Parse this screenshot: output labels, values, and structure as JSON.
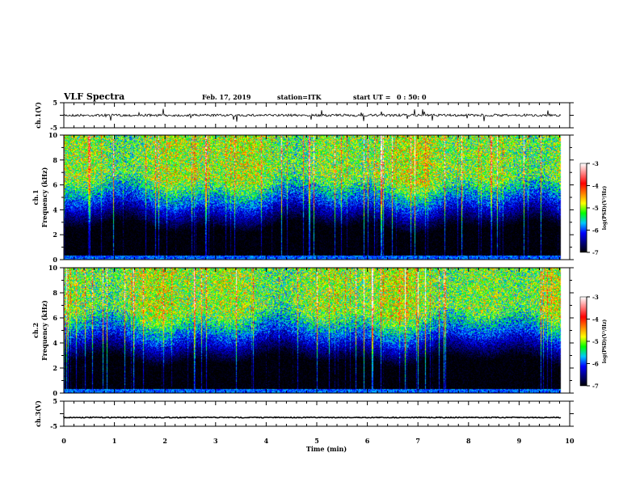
{
  "chart_data": {
    "type": "heatmap",
    "title": "VLF Spectra",
    "date": "Feb. 17, 2019",
    "station": "station=ITK",
    "start_label": "start  UT =",
    "start_time": "0 : 50: 0",
    "xlabel": "Time  (min)",
    "xlim": [
      0,
      10
    ],
    "x_ticks": [
      "0",
      "1",
      "2",
      "3",
      "4",
      "5",
      "6",
      "7",
      "8",
      "9",
      "10"
    ],
    "data_end_min": 9.83,
    "panels": [
      {
        "id": "ch1-waveform",
        "type": "line",
        "ylabel": "ch.1(V)",
        "ylim": [
          -5,
          5
        ],
        "y_ticks": [
          "5",
          "-5"
        ],
        "baseline": 0
      },
      {
        "id": "ch1-spectrogram",
        "type": "heatmap",
        "ylabel_top": "ch.1",
        "ylabel": "Frequency  (kHz)",
        "ylim": [
          0,
          10
        ],
        "y_ticks": [
          "0",
          "2",
          "4",
          "6",
          "8",
          "10"
        ],
        "colorbar": {
          "label": "log(PSD)(V²/Hz)",
          "range": [
            -7,
            -3
          ],
          "ticks": [
            "-3",
            "-4",
            "-5",
            "-6",
            "-7"
          ]
        }
      },
      {
        "id": "ch2-spectrogram",
        "type": "heatmap",
        "ylabel_top": "ch.2",
        "ylabel": "Frequency  (kHz)",
        "ylim": [
          0,
          10
        ],
        "y_ticks": [
          "0",
          "2",
          "4",
          "6",
          "8",
          "10"
        ],
        "colorbar": {
          "label": "log(PSD)(V²/Hz)",
          "range": [
            -7,
            -3
          ],
          "ticks": [
            "-3",
            "-4",
            "-5",
            "-6",
            "-7"
          ]
        }
      },
      {
        "id": "ch3-waveform",
        "type": "line",
        "ylabel": "ch.3(V)",
        "ylim": [
          -5,
          5
        ],
        "y_ticks": [
          "5",
          "-5"
        ],
        "baseline": -1.5
      }
    ],
    "colormap": [
      "#000000",
      "#00007a",
      "#0000ff",
      "#00c8ff",
      "#00ff00",
      "#ffff00",
      "#ff8000",
      "#ff0000",
      "#ff8080",
      "#ffffff"
    ]
  }
}
